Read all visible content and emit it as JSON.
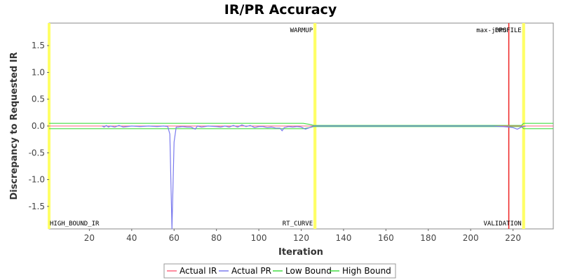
{
  "chart_data": {
    "type": "line",
    "title": "IR/PR Accuracy",
    "xlabel": "Iteration",
    "ylabel": "Discrepancy to Requested IR",
    "xlim": [
      1,
      239
    ],
    "ylim": [
      -1.92,
      1.92
    ],
    "xticks": [
      20,
      40,
      60,
      80,
      100,
      120,
      140,
      160,
      180,
      200,
      220
    ],
    "yticks": [
      -1.5,
      -1.0,
      -0.5,
      0.0,
      0.5,
      1.0,
      1.5
    ],
    "xtick_labels": [
      "20",
      "40",
      "60",
      "80",
      "100",
      "120",
      "140",
      "160",
      "180",
      "200",
      "220"
    ],
    "ytick_labels": [
      "-1.5",
      "-1.0",
      "-0.5",
      "0.0",
      "0.5",
      "1.0",
      "1.5"
    ],
    "grid": false,
    "legend_position": "bottom",
    "series": [
      {
        "name": "Actual IR",
        "color": "#ff6680",
        "x": [
          1,
          239
        ],
        "y": [
          0,
          0
        ]
      },
      {
        "name": "Actual PR",
        "color": "#7a7aee",
        "x": [
          26,
          27,
          28,
          29,
          30,
          32,
          34,
          36,
          38,
          40,
          44,
          48,
          52,
          55,
          57,
          58,
          59,
          60,
          61,
          62,
          64,
          66,
          68,
          70,
          71,
          73,
          76,
          80,
          82,
          84,
          86,
          88,
          90,
          92,
          94,
          96,
          98,
          100,
          102,
          104,
          106,
          108,
          110,
          111,
          112,
          114,
          116,
          118,
          120,
          122,
          124,
          126,
          130,
          150,
          180,
          210,
          215,
          218,
          220,
          222,
          224,
          226
        ],
        "y": [
          0.0,
          -0.02,
          0.01,
          -0.02,
          0.0,
          -0.02,
          0.01,
          -0.02,
          -0.01,
          0.0,
          -0.01,
          0.0,
          -0.01,
          0.0,
          -0.01,
          -0.15,
          -1.92,
          -0.3,
          -0.02,
          -0.02,
          -0.01,
          -0.02,
          -0.02,
          -0.06,
          0.0,
          -0.02,
          0.0,
          -0.01,
          -0.02,
          0.0,
          -0.02,
          0.01,
          -0.02,
          0.02,
          -0.01,
          0.01,
          -0.03,
          -0.01,
          -0.01,
          -0.03,
          -0.02,
          -0.04,
          -0.04,
          -0.09,
          -0.03,
          -0.01,
          -0.02,
          -0.01,
          -0.02,
          -0.06,
          -0.03,
          0.0,
          0.0,
          0.0,
          0.0,
          0.0,
          -0.01,
          -0.02,
          -0.03,
          -0.06,
          -0.02,
          0.0
        ]
      },
      {
        "name": "Low Bound",
        "color": "#44dd44",
        "x": [
          1,
          121,
          124,
          126,
          224,
          225,
          239
        ],
        "y": [
          -0.05,
          -0.05,
          -0.03,
          -0.01,
          -0.01,
          -0.05,
          -0.05
        ]
      },
      {
        "name": "High Bound",
        "color": "#44dd44",
        "x": [
          1,
          121,
          124,
          126,
          224,
          225,
          239
        ],
        "y": [
          0.05,
          0.05,
          0.03,
          0.01,
          0.01,
          0.05,
          0.05
        ]
      }
    ],
    "markers": [
      {
        "x": 1,
        "label": "HIGH_BOUND_IR",
        "color": "#ffff66",
        "label_position": "bottom"
      },
      {
        "x": 126.5,
        "label": "WARMUP",
        "color": "#ffff66",
        "label_position": "top"
      },
      {
        "x": 126.5,
        "label": "RT_CURVE",
        "color": "#ffff66",
        "label_position": "bottom"
      },
      {
        "x": 218,
        "label": "max-jOPS",
        "color": "#ee2222",
        "label_position": "top"
      },
      {
        "x": 225,
        "label": "VALIDATION",
        "color": "#ffff66",
        "label_position": "bottom"
      },
      {
        "x": 225,
        "label": "PROFILE",
        "color": "#ffff66",
        "label_position": "top"
      }
    ]
  }
}
